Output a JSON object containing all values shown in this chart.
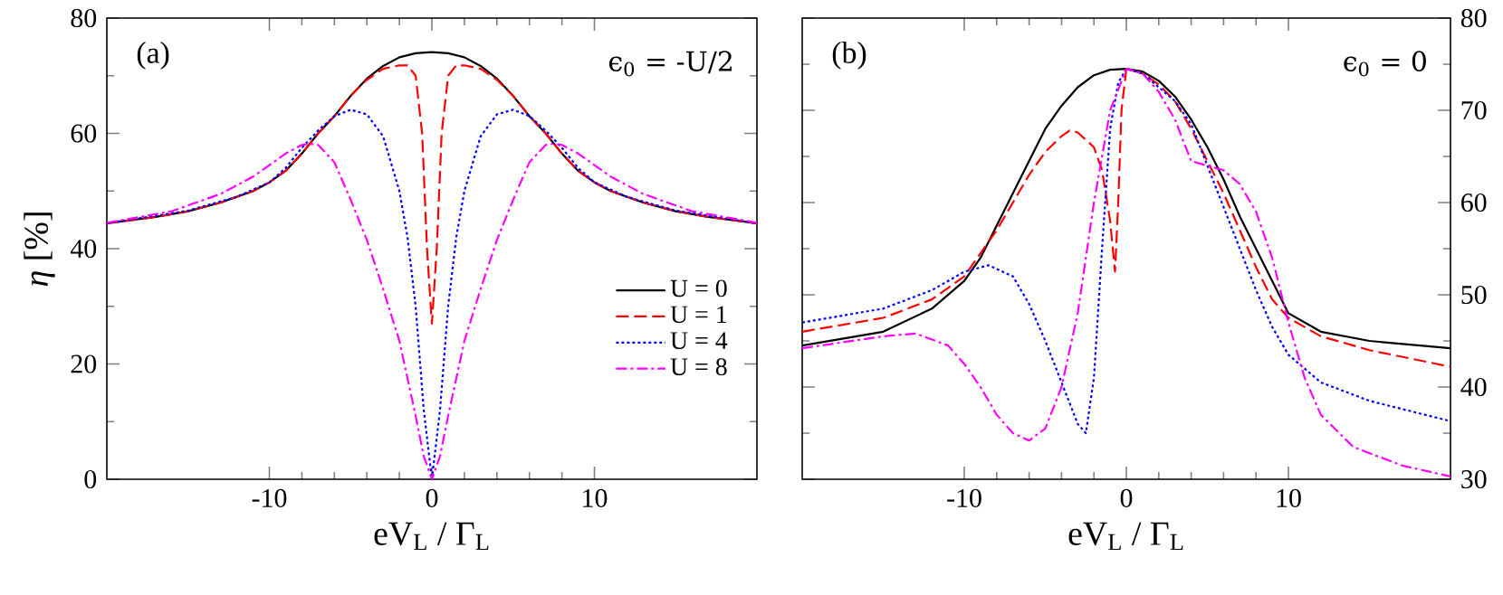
{
  "chart_data": [
    {
      "type": "line",
      "xlabel": "eV$_{L}$ / Γ$_{L}$",
      "ylabel": "*η* [%]",
      "annotations": [
        "(a)",
        "ϵ$_{0}$ = -U/2"
      ],
      "xlim": [
        -20,
        20
      ],
      "xticks": [
        -10,
        0,
        10
      ],
      "ylim": [
        0,
        80
      ],
      "yticks": [
        0,
        20,
        40,
        60,
        80
      ],
      "legend": "bottom right",
      "grid": false,
      "series": [
        {
          "name": "U = 0",
          "color": "#000000",
          "line_style": "solid",
          "x": [
            -20,
            -17,
            -15,
            -13,
            -11,
            -10,
            -9,
            -8,
            -7,
            -6,
            -5,
            -4,
            -3,
            -2,
            -1,
            0,
            1,
            2,
            3,
            4,
            5,
            6,
            7,
            8,
            9,
            10,
            11,
            13,
            15,
            17,
            20
          ],
          "values": [
            44.4,
            45.5,
            46.5,
            48,
            50,
            51.5,
            53.5,
            56.5,
            60,
            63,
            66.5,
            69.5,
            71.7,
            73.2,
            73.9,
            74.1,
            73.9,
            73.2,
            71.7,
            69.5,
            66.5,
            63,
            60,
            56.5,
            53.5,
            51.5,
            50,
            48,
            46.5,
            45.5,
            44.4
          ]
        },
        {
          "name": "U = 1",
          "color": "#ff0000",
          "line_style": "dashed",
          "x": [
            -20,
            -17,
            -15,
            -13,
            -11,
            -10,
            -9,
            -8,
            -7,
            -6,
            -5,
            -4,
            -3,
            -2,
            -1.5,
            -1,
            -0.6,
            -0.3,
            0,
            0.3,
            0.6,
            1,
            1.5,
            2,
            3,
            4,
            5,
            6,
            7,
            8,
            9,
            10,
            11,
            13,
            15,
            17,
            20
          ],
          "values": [
            44.4,
            45.5,
            46.5,
            48,
            50,
            51.5,
            53.5,
            56.5,
            60,
            63,
            66.5,
            69.3,
            71.2,
            71.8,
            71.8,
            70,
            60,
            40,
            27,
            40,
            60,
            70,
            71.8,
            71.8,
            71.2,
            69.3,
            66.5,
            63,
            60,
            56.5,
            53.5,
            51.5,
            50,
            48,
            46.5,
            45.5,
            44.4
          ]
        },
        {
          "name": "U = 4",
          "color": "#0000ff",
          "line_style": "dotted",
          "x": [
            -20,
            -15,
            -12,
            -10,
            -9,
            -8,
            -7,
            -6,
            -5,
            -4,
            -3,
            -2,
            -1.5,
            -1,
            -0.5,
            0,
            0.5,
            1,
            1.5,
            2,
            3,
            4,
            5,
            6,
            7,
            8,
            9,
            10,
            12,
            15,
            20
          ],
          "values": [
            44.4,
            46.6,
            49,
            51.5,
            54,
            57.5,
            60.5,
            63,
            64.1,
            63.3,
            59.5,
            50,
            42,
            30,
            12,
            0,
            12,
            30,
            42,
            50,
            59.5,
            63.3,
            64.1,
            63,
            60.5,
            57.5,
            54,
            51.5,
            49,
            46.6,
            44.4
          ]
        },
        {
          "name": "U = 8",
          "color": "#ff00ff",
          "line_style": "dashdot",
          "x": [
            -20,
            -16,
            -13,
            -11,
            -10,
            -9,
            -8,
            -7.5,
            -7,
            -6,
            -5,
            -4,
            -3,
            -2,
            -1,
            -0.5,
            0,
            0.5,
            1,
            2,
            3,
            4,
            5,
            6,
            7,
            7.5,
            8,
            9,
            10,
            11,
            13,
            16,
            20
          ],
          "values": [
            44.5,
            46.5,
            49.5,
            52.5,
            54.5,
            56.5,
            58,
            58.2,
            58,
            55,
            48.5,
            41.5,
            33,
            24,
            11,
            4,
            0,
            4,
            11,
            24,
            33,
            41.5,
            48.5,
            55,
            58,
            58.2,
            58,
            56.5,
            54.5,
            52.5,
            49.5,
            46.5,
            44.5
          ]
        }
      ]
    },
    {
      "type": "line",
      "xlabel": "eV$_{L}$ / Γ$_{L}$",
      "annotations": [
        "(b)",
        "ϵ$_{0}$ = 0"
      ],
      "xlim": [
        -20,
        20
      ],
      "xticks": [
        -10,
        0,
        10
      ],
      "y2lim": [
        30,
        80
      ],
      "y2ticks": [
        30,
        40,
        50,
        60,
        70,
        80
      ],
      "legend": false,
      "grid": false,
      "series": [
        {
          "color": "#000000",
          "line_style": "solid",
          "axis": "y2",
          "x": [
            -20,
            -15,
            -12,
            -10,
            -9,
            -8,
            -7,
            -6,
            -5,
            -4,
            -3,
            -2,
            -1,
            0,
            1,
            2,
            3,
            4,
            5,
            6,
            7,
            8,
            9,
            10,
            12,
            15,
            20
          ],
          "values": [
            44.5,
            46,
            48.5,
            51.5,
            54,
            57.5,
            61,
            64.5,
            68,
            70.5,
            72.5,
            73.8,
            74.4,
            74.5,
            74.2,
            73.2,
            71.5,
            69,
            66,
            62.5,
            58.5,
            55,
            51.5,
            48,
            46,
            45,
            44.2
          ]
        },
        {
          "color": "#ff0000",
          "line_style": "dashed",
          "axis": "y2",
          "x": [
            -20,
            -15,
            -12,
            -10,
            -8,
            -6,
            -5,
            -4,
            -3.5,
            -3,
            -2,
            -1.5,
            -1,
            -0.7,
            -0.5,
            -0.3,
            0,
            1,
            2,
            3,
            4,
            5,
            6,
            7,
            8,
            9,
            10,
            12,
            15,
            20
          ],
          "values": [
            46,
            47.5,
            49.5,
            52,
            57,
            63,
            65.5,
            67.2,
            67.8,
            67.6,
            66,
            63.5,
            58,
            52.5,
            60,
            70,
            74.5,
            74,
            72.8,
            71,
            68,
            64.5,
            61,
            57,
            53,
            49.5,
            47.5,
            45.5,
            44,
            42.2
          ]
        },
        {
          "color": "#0000ff",
          "line_style": "dotted",
          "axis": "y2",
          "x": [
            -20,
            -15,
            -12,
            -10,
            -8.5,
            -7,
            -6,
            -5,
            -4,
            -3,
            -2.5,
            -2,
            -1.5,
            -1,
            -0.5,
            0,
            1,
            2,
            3,
            4,
            5,
            6,
            7,
            8,
            9,
            10,
            12,
            15,
            20
          ],
          "values": [
            47,
            48.5,
            50.5,
            52.5,
            53.2,
            52,
            49,
            45,
            40.5,
            36,
            35,
            41,
            55,
            68,
            73,
            74.5,
            74,
            72.5,
            71,
            68.5,
            64,
            59.5,
            55,
            50.5,
            46.5,
            43.5,
            40.5,
            38.5,
            36.3
          ]
        },
        {
          "color": "#ff00ff",
          "line_style": "dashdot",
          "axis": "y2",
          "x": [
            -20,
            -15,
            -13,
            -11,
            -10,
            -9,
            -8,
            -7,
            -6,
            -5,
            -4,
            -3,
            -2,
            -1,
            0,
            1,
            2,
            3,
            4,
            5,
            6,
            7,
            8,
            9,
            10,
            11,
            12,
            14,
            17,
            20
          ],
          "values": [
            44.2,
            45.5,
            45.8,
            44.5,
            42.5,
            40,
            37,
            35,
            34.2,
            35.5,
            40,
            48,
            60,
            70,
            74.5,
            74,
            72,
            69,
            64.5,
            64,
            63.5,
            62,
            59,
            54,
            47,
            41,
            37,
            33.5,
            31.5,
            30.3
          ]
        }
      ]
    }
  ]
}
